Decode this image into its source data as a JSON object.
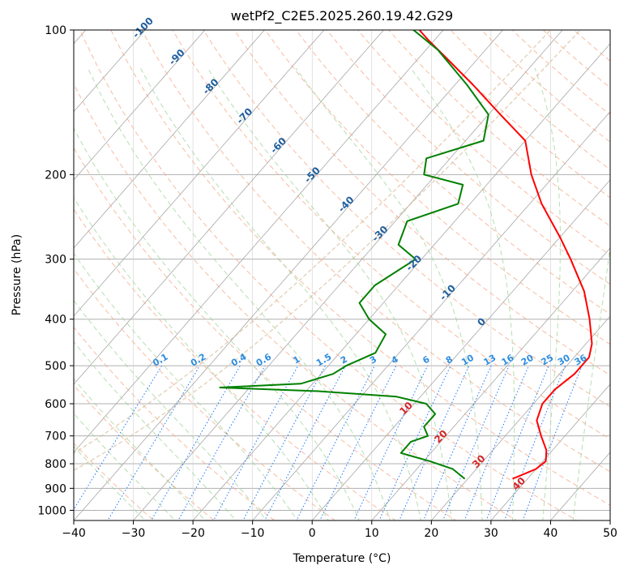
{
  "chart_data": {
    "type": "line",
    "subtype": "skew-t log-p",
    "title": "wetPf2_C2E5.2025.260.19.42.G29",
    "xlabel": "Temperature (°C)",
    "ylabel": "Pressure (hPa)",
    "xlim": [
      -40,
      50
    ],
    "ylim": [
      1050,
      100
    ],
    "x_ticks": [
      "−40",
      "−30",
      "−20",
      "−10",
      "0",
      "10",
      "20",
      "30",
      "40",
      "50"
    ],
    "x_tick_values": [
      -40,
      -30,
      -20,
      -10,
      0,
      10,
      20,
      30,
      40,
      50
    ],
    "y_ticks": [
      "100",
      "200",
      "300",
      "400",
      "500",
      "600",
      "700",
      "800",
      "900",
      "1000"
    ],
    "y_tick_values": [
      100,
      200,
      300,
      400,
      500,
      600,
      700,
      800,
      900,
      1000
    ],
    "grid": true,
    "colors": {
      "temperature": "#ff0000",
      "dewpoint": "#008000",
      "isotherm": "#a9a9a9",
      "dry_adiabat": "#f4a582",
      "moist_adiabat": "#9ed39a",
      "mixing_ratio": "#1f77ff",
      "mixing_label": "#2e8de0",
      "isotherm_label": "#1f5f9f",
      "red_label": "#d62728",
      "dendritic": "#d2b48c"
    },
    "series": [
      {
        "name": "Temperature",
        "color": "#ff0000",
        "points": [
          {
            "p": 860,
            "t": 27.5
          },
          {
            "p": 820,
            "t": 30.0
          },
          {
            "p": 790,
            "t": 30.5
          },
          {
            "p": 750,
            "t": 29.0
          },
          {
            "p": 700,
            "t": 26.0
          },
          {
            "p": 650,
            "t": 23.0
          },
          {
            "p": 600,
            "t": 21.5
          },
          {
            "p": 560,
            "t": 21.5
          },
          {
            "p": 520,
            "t": 22.5
          },
          {
            "p": 480,
            "t": 22.5
          },
          {
            "p": 450,
            "t": 21.0
          },
          {
            "p": 400,
            "t": 17.0
          },
          {
            "p": 350,
            "t": 12.0
          },
          {
            "p": 300,
            "t": 5.0
          },
          {
            "p": 270,
            "t": 0.0
          },
          {
            "p": 230,
            "t": -8.0
          },
          {
            "p": 200,
            "t": -14.0
          },
          {
            "p": 170,
            "t": -20.0
          },
          {
            "p": 150,
            "t": -28.0
          },
          {
            "p": 130,
            "t": -37.0
          },
          {
            "p": 115,
            "t": -45.0
          },
          {
            "p": 105,
            "t": -51.0
          },
          {
            "p": 100,
            "t": -54.0
          }
        ]
      },
      {
        "name": "Dewpoint",
        "color": "#008000",
        "points": [
          {
            "p": 860,
            "t": 19.5
          },
          {
            "p": 820,
            "t": 16.0
          },
          {
            "p": 790,
            "t": 11.0
          },
          {
            "p": 760,
            "t": 5.0
          },
          {
            "p": 720,
            "t": 5.0
          },
          {
            "p": 700,
            "t": 7.0
          },
          {
            "p": 670,
            "t": 5.0
          },
          {
            "p": 630,
            "t": 5.0
          },
          {
            "p": 600,
            "t": 2.0
          },
          {
            "p": 580,
            "t": -4.0
          },
          {
            "p": 565,
            "t": -18.0
          },
          {
            "p": 555,
            "t": -35.0
          },
          {
            "p": 545,
            "t": -22.0
          },
          {
            "p": 520,
            "t": -18.0
          },
          {
            "p": 500,
            "t": -17.0
          },
          {
            "p": 470,
            "t": -14.0
          },
          {
            "p": 430,
            "t": -15.0
          },
          {
            "p": 400,
            "t": -20.0
          },
          {
            "p": 370,
            "t": -24.0
          },
          {
            "p": 340,
            "t": -24.0
          },
          {
            "p": 300,
            "t": -21.0
          },
          {
            "p": 280,
            "t": -26.0
          },
          {
            "p": 250,
            "t": -28.0
          },
          {
            "p": 230,
            "t": -22.0
          },
          {
            "p": 210,
            "t": -24.0
          },
          {
            "p": 200,
            "t": -32.0
          },
          {
            "p": 185,
            "t": -34.0
          },
          {
            "p": 170,
            "t": -27.0
          },
          {
            "p": 150,
            "t": -30.0
          },
          {
            "p": 130,
            "t": -38.0
          },
          {
            "p": 110,
            "t": -48.0
          },
          {
            "p": 100,
            "t": -55.0
          }
        ]
      }
    ],
    "isotherm_labels": [
      "-100",
      "-90",
      "-80",
      "-70",
      "-60",
      "-50",
      "-40",
      "-30",
      "-20",
      "-10",
      "0"
    ],
    "isotherm_label_values": [
      -100,
      -90,
      -80,
      -70,
      -60,
      -50,
      -40,
      -30,
      -20,
      -10,
      0
    ],
    "mixing_ratio_labels": [
      "0.1",
      "0.2",
      "0.4",
      "0.6",
      "1",
      "1.5",
      "2",
      "3",
      "4",
      "6",
      "8",
      "10",
      "13",
      "16",
      "20",
      "25",
      "30",
      "36"
    ],
    "mixing_ratio_values": [
      0.1,
      0.2,
      0.4,
      0.6,
      1,
      1.5,
      2,
      3,
      4,
      6,
      8,
      10,
      13,
      16,
      20,
      25,
      30,
      36
    ],
    "red_labels": [
      "10",
      "20",
      "30",
      "40"
    ],
    "red_label_values": [
      10,
      20,
      30,
      40
    ]
  }
}
